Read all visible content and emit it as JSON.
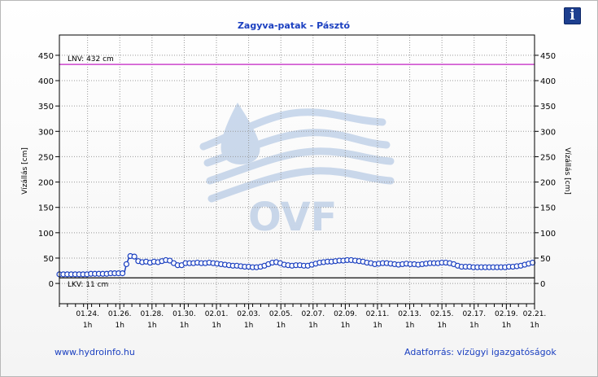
{
  "chart_data": {
    "type": "line",
    "title": "Zagyva-patak - Pásztó",
    "ylabel_left": "Vízállás [cm]",
    "ylabel_right": "Vízállás [cm]",
    "ylim": [
      -40,
      490
    ],
    "yticks": [
      0,
      50,
      100,
      150,
      200,
      250,
      300,
      350,
      400,
      450
    ],
    "xlim": [
      0,
      59
    ],
    "xticks": [
      {
        "x": 3.5,
        "date": "01.24.",
        "time": "1h"
      },
      {
        "x": 7.5,
        "date": "01.26.",
        "time": "1h"
      },
      {
        "x": 11.5,
        "date": "01.28.",
        "time": "1h"
      },
      {
        "x": 15.5,
        "date": "01.30.",
        "time": "1h"
      },
      {
        "x": 19.5,
        "date": "02.01.",
        "time": "1h"
      },
      {
        "x": 23.5,
        "date": "02.03.",
        "time": "1h"
      },
      {
        "x": 27.5,
        "date": "02.05.",
        "time": "1h"
      },
      {
        "x": 31.5,
        "date": "02.07.",
        "time": "1h"
      },
      {
        "x": 35.5,
        "date": "02.09.",
        "time": "1h"
      },
      {
        "x": 39.5,
        "date": "02.11.",
        "time": "1h"
      },
      {
        "x": 43.5,
        "date": "02.13.",
        "time": "1h"
      },
      {
        "x": 47.5,
        "date": "02.15.",
        "time": "1h"
      },
      {
        "x": 51.5,
        "date": "02.17.",
        "time": "1h"
      },
      {
        "x": 55.5,
        "date": "02.19.",
        "time": "1h"
      },
      {
        "x": 59,
        "date": "02.21.",
        "time": "1h"
      }
    ],
    "reference_lines": [
      {
        "label": "LNV: 432 cm",
        "value": 432,
        "color": "#cc44cc"
      },
      {
        "label": "LKV: 11 cm",
        "value": 11,
        "color": "#333333"
      }
    ],
    "series": [
      {
        "color": "#1a3fc0",
        "values": [
          18,
          18,
          18,
          17,
          18,
          18,
          18,
          17,
          18,
          18,
          18,
          18,
          18,
          18,
          18,
          19,
          19,
          19,
          19,
          19,
          19,
          19,
          19,
          19,
          19,
          20,
          20,
          20,
          20,
          20,
          20,
          20,
          20,
          22,
          38,
          48,
          54,
          56,
          53,
          48,
          44,
          43,
          42,
          42,
          43,
          42,
          41,
          42,
          43,
          43,
          42,
          41,
          44,
          46,
          46,
          46,
          45,
          43,
          40,
          38,
          36,
          34,
          36,
          38,
          40,
          40,
          40,
          39,
          40,
          41,
          41,
          41,
          40,
          40,
          40,
          41,
          41,
          41,
          40,
          40,
          39,
          38,
          38,
          37,
          37,
          36,
          36,
          36,
          35,
          35,
          35,
          35,
          34,
          34,
          33,
          33,
          33,
          33,
          32,
          32,
          32,
          33,
          33,
          34,
          35,
          36,
          38,
          40,
          41,
          42,
          42,
          41,
          40,
          38,
          37,
          36,
          36,
          35,
          35,
          36,
          36,
          36,
          36,
          35,
          35,
          35,
          35,
          36,
          37,
          38,
          39,
          40,
          41,
          41,
          42,
          42,
          43,
          43,
          43,
          44,
          44,
          44,
          45,
          45,
          45,
          46,
          46,
          46,
          46,
          45,
          45,
          44,
          44,
          43,
          43,
          42,
          41,
          40,
          40,
          39,
          38,
          38,
          39,
          39,
          40,
          40,
          40,
          40,
          39,
          38,
          38,
          37,
          37,
          38,
          38,
          39,
          39,
          39,
          38,
          38,
          38,
          37,
          37,
          38,
          38,
          38,
          39,
          39,
          40,
          40,
          40,
          40,
          40,
          41,
          41,
          41,
          41,
          41,
          40,
          40,
          38,
          36,
          35,
          34,
          33,
          33,
          33,
          33,
          33,
          33,
          32,
          32,
          32,
          32,
          32,
          32,
          32,
          32,
          32,
          32,
          32,
          32,
          32,
          32,
          32,
          32,
          32,
          32,
          33,
          33,
          33,
          33,
          34,
          34,
          35,
          36,
          37,
          38,
          39,
          40,
          41,
          43
        ]
      }
    ],
    "watermark": "OVF"
  },
  "footer": {
    "left": "www.hydroinfo.hu",
    "right": "Adatforrás: vízügyi igazgatóságok"
  },
  "info_icon": "info-icon"
}
